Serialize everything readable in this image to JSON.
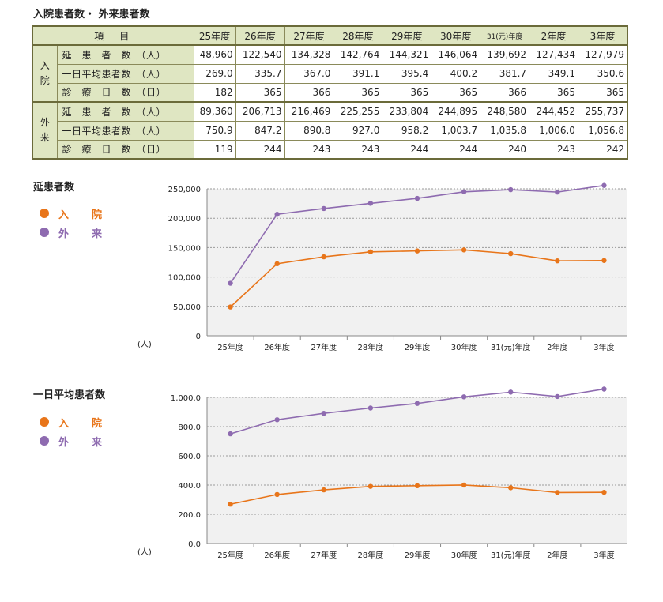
{
  "page": {
    "title": "入院患者数・ 外来患者数"
  },
  "table": {
    "item_header": "項　目",
    "years": [
      "25年度",
      "26年度",
      "27年度",
      "28年度",
      "29年度",
      "30年度",
      "31(元)年度",
      "2年度",
      "3年度"
    ],
    "groups": [
      {
        "label": "入院",
        "rows": [
          {
            "label": "延　患　者　数　（人）",
            "values": [
              "48,960",
              "122,540",
              "134,328",
              "142,764",
              "144,321",
              "146,064",
              "139,692",
              "127,434",
              "127,979"
            ]
          },
          {
            "label": "一日平均患者数　（人）",
            "values": [
              "269.0",
              "335.7",
              "367.0",
              "391.1",
              "395.4",
              "400.2",
              "381.7",
              "349.1",
              "350.6"
            ]
          },
          {
            "label": "診　療　日　数　（日）",
            "values": [
              "182",
              "365",
              "366",
              "365",
              "365",
              "365",
              "366",
              "365",
              "365"
            ]
          }
        ]
      },
      {
        "label": "外来",
        "rows": [
          {
            "label": "延　患　者　数　（人）",
            "values": [
              "89,360",
              "206,713",
              "216,469",
              "225,255",
              "233,804",
              "244,895",
              "248,580",
              "244,452",
              "255,737"
            ]
          },
          {
            "label": "一日平均患者数　（人）",
            "values": [
              "750.9",
              "847.2",
              "890.8",
              "927.0",
              "958.2",
              "1,003.7",
              "1,035.8",
              "1,006.0",
              "1,056.8"
            ]
          },
          {
            "label": "診　療　日　数　（日）",
            "values": [
              "119",
              "244",
              "243",
              "243",
              "244",
              "244",
              "240",
              "243",
              "242"
            ]
          }
        ]
      }
    ]
  },
  "colors": {
    "inpatient": "#e8751a",
    "outpatient": "#8e6bb0",
    "plot_bg": "#f1f1f1",
    "header_bg": "#dfe6c2"
  },
  "chart_data": [
    {
      "type": "line",
      "title": "延患者数",
      "unit": "(人)",
      "categories": [
        "25年度",
        "26年度",
        "27年度",
        "28年度",
        "29年度",
        "30年度",
        "31(元)年度",
        "2年度",
        "3年度"
      ],
      "series": [
        {
          "name": "入　院",
          "color": "#e8751a",
          "values": [
            48960,
            122540,
            134328,
            142764,
            144321,
            146064,
            139692,
            127434,
            127979
          ]
        },
        {
          "name": "外　来",
          "color": "#8e6bb0",
          "values": [
            89360,
            206713,
            216469,
            225255,
            233804,
            244895,
            248580,
            244452,
            255737
          ]
        }
      ],
      "ylim": [
        0,
        250000
      ],
      "yticks": [
        0,
        50000,
        100000,
        150000,
        200000,
        250000
      ],
      "ytick_labels": [
        "0",
        "50,000",
        "100,000",
        "150,000",
        "200,000",
        "250,000"
      ],
      "grid": true,
      "legend": "left"
    },
    {
      "type": "line",
      "title": "一日平均患者数",
      "unit": "(人)",
      "categories": [
        "25年度",
        "26年度",
        "27年度",
        "28年度",
        "29年度",
        "30年度",
        "31(元)年度",
        "2年度",
        "3年度"
      ],
      "series": [
        {
          "name": "入　院",
          "color": "#e8751a",
          "values": [
            269.0,
            335.7,
            367.0,
            391.1,
            395.4,
            400.2,
            381.7,
            349.1,
            350.6
          ]
        },
        {
          "name": "外　来",
          "color": "#8e6bb0",
          "values": [
            750.9,
            847.2,
            890.8,
            927.0,
            958.2,
            1003.7,
            1035.8,
            1006.0,
            1056.8
          ]
        }
      ],
      "ylim": [
        0,
        1000
      ],
      "yticks": [
        0,
        200,
        400,
        600,
        800,
        1000
      ],
      "ytick_labels": [
        "0.0",
        "200.0",
        "400.0",
        "600.0",
        "800.0",
        "1,000.0"
      ],
      "grid": true,
      "legend": "left"
    }
  ]
}
